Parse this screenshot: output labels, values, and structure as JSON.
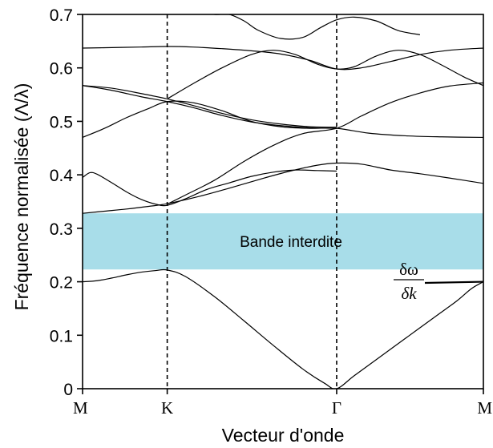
{
  "chart_data": {
    "type": "line",
    "xlabel": "Vecteur d'onde",
    "ylabel": "Fréquence normalisée (Λ/λ)",
    "ylim": [
      0,
      0.7
    ],
    "yticks": [
      0,
      0.1,
      0.2,
      0.3,
      0.4,
      0.5,
      0.6,
      0.7
    ],
    "ytick_labels": [
      "0",
      "0.1",
      "0.2",
      "0.3",
      "0.4",
      "0.5",
      "0.6",
      "0.7"
    ],
    "xlim": [
      0,
      3
    ],
    "xticks": [
      {
        "x": 0,
        "label": "M"
      },
      {
        "x": 0.577,
        "label": "K"
      },
      {
        "x": 1.732,
        "label": "Γ"
      },
      {
        "x": 2.732,
        "label": "M"
      }
    ],
    "vlines": [
      0.577,
      1.732
    ],
    "band_gap": {
      "y0": 0.223,
      "y1": 0.328,
      "label": "Bande interdite",
      "color": "#a8dde9"
    },
    "annotation": {
      "numerator": "δω",
      "denominator": "δk",
      "x": 2.732,
      "y": 0.2
    },
    "line_color": "#000000",
    "series": [
      {
        "x": [
          0,
          0.1,
          0.2,
          0.3,
          0.4,
          0.5,
          0.577,
          0.7,
          0.9,
          1.1,
          1.3,
          1.5,
          1.65,
          1.732,
          1.85,
          2.0,
          2.2,
          2.4,
          2.55,
          2.65,
          2.732
        ],
        "y": [
          0.2,
          0.202,
          0.207,
          0.213,
          0.218,
          0.221,
          0.222,
          0.21,
          0.172,
          0.127,
          0.081,
          0.037,
          0.01,
          0.0,
          0.024,
          0.054,
          0.094,
          0.134,
          0.164,
          0.187,
          0.2
        ]
      },
      {
        "x": [
          0,
          0.15,
          0.3,
          0.45,
          0.577,
          0.8,
          1.0,
          1.2,
          1.4,
          1.6,
          1.732,
          1.9,
          2.1,
          2.3,
          2.5,
          2.732
        ],
        "y": [
          0.328,
          0.332,
          0.336,
          0.341,
          0.346,
          0.36,
          0.375,
          0.391,
          0.406,
          0.418,
          0.422,
          0.42,
          0.409,
          0.402,
          0.394,
          0.384
        ]
      },
      {
        "x": [
          0,
          0.05,
          0.1,
          0.2,
          0.3,
          0.4,
          0.5,
          0.577,
          0.7,
          0.85,
          1.0,
          1.15,
          1.3,
          1.45,
          1.6,
          1.732
        ],
        "y": [
          0.395,
          0.404,
          0.401,
          0.385,
          0.368,
          0.354,
          0.345,
          0.343,
          0.355,
          0.373,
          0.385,
          0.397,
          0.405,
          0.409,
          0.408,
          0.407
        ]
      },
      {
        "x": [
          0,
          0.15,
          0.3,
          0.45,
          0.577,
          0.75,
          0.95,
          1.15,
          1.35,
          1.55,
          1.732,
          1.95,
          2.2,
          2.45,
          2.732
        ],
        "y": [
          0.47,
          0.487,
          0.507,
          0.524,
          0.537,
          0.535,
          0.52,
          0.5,
          0.49,
          0.487,
          0.487,
          0.478,
          0.473,
          0.471,
          0.47
        ]
      },
      {
        "x": [
          0.577,
          0.7,
          0.9,
          1.1,
          1.3,
          1.5,
          1.732,
          1.9,
          2.1,
          2.3,
          2.5,
          2.732
        ],
        "y": [
          0.345,
          0.362,
          0.39,
          0.425,
          0.455,
          0.477,
          0.487,
          0.51,
          0.535,
          0.553,
          0.566,
          0.572
        ]
      },
      {
        "x": [
          0,
          0.2,
          0.4,
          0.577,
          0.75,
          0.95,
          1.15,
          1.35,
          1.55,
          1.732
        ],
        "y": [
          0.567,
          0.562,
          0.552,
          0.542,
          0.53,
          0.515,
          0.503,
          0.495,
          0.49,
          0.489
        ]
      },
      {
        "x": [
          0,
          0.2,
          0.4,
          0.577,
          0.75,
          0.95,
          1.15,
          1.35,
          1.55,
          1.732
        ],
        "y": [
          0.567,
          0.558,
          0.546,
          0.537,
          0.526,
          0.511,
          0.499,
          0.492,
          0.488,
          0.487
        ]
      },
      {
        "x": [
          0.577,
          0.75,
          0.95,
          1.15,
          1.3,
          1.45,
          1.6,
          1.732,
          1.85,
          2.0,
          2.15,
          2.3,
          2.45,
          2.6,
          2.732
        ],
        "y": [
          0.542,
          0.57,
          0.6,
          0.625,
          0.633,
          0.625,
          0.607,
          0.598,
          0.602,
          0.622,
          0.633,
          0.625,
          0.605,
          0.583,
          0.567
        ]
      },
      {
        "x": [
          0,
          0.2,
          0.4,
          0.577,
          0.75,
          0.95,
          1.15,
          1.35,
          1.55,
          1.732,
          1.9,
          2.1,
          2.3,
          2.5,
          2.732
        ],
        "y": [
          0.637,
          0.638,
          0.639,
          0.64,
          0.639,
          0.636,
          0.632,
          0.626,
          0.614,
          0.598,
          0.6,
          0.612,
          0.625,
          0.633,
          0.637
        ]
      },
      {
        "x": [
          0.577,
          0.75,
          0.9,
          1.0,
          1.1,
          1.2,
          1.35,
          1.5,
          1.62,
          1.732,
          1.85,
          2.0,
          2.15,
          2.3
        ],
        "y": [
          0.72,
          0.706,
          0.7,
          0.7,
          0.688,
          0.67,
          0.655,
          0.657,
          0.675,
          0.69,
          0.695,
          0.688,
          0.67,
          0.662
        ]
      }
    ]
  }
}
